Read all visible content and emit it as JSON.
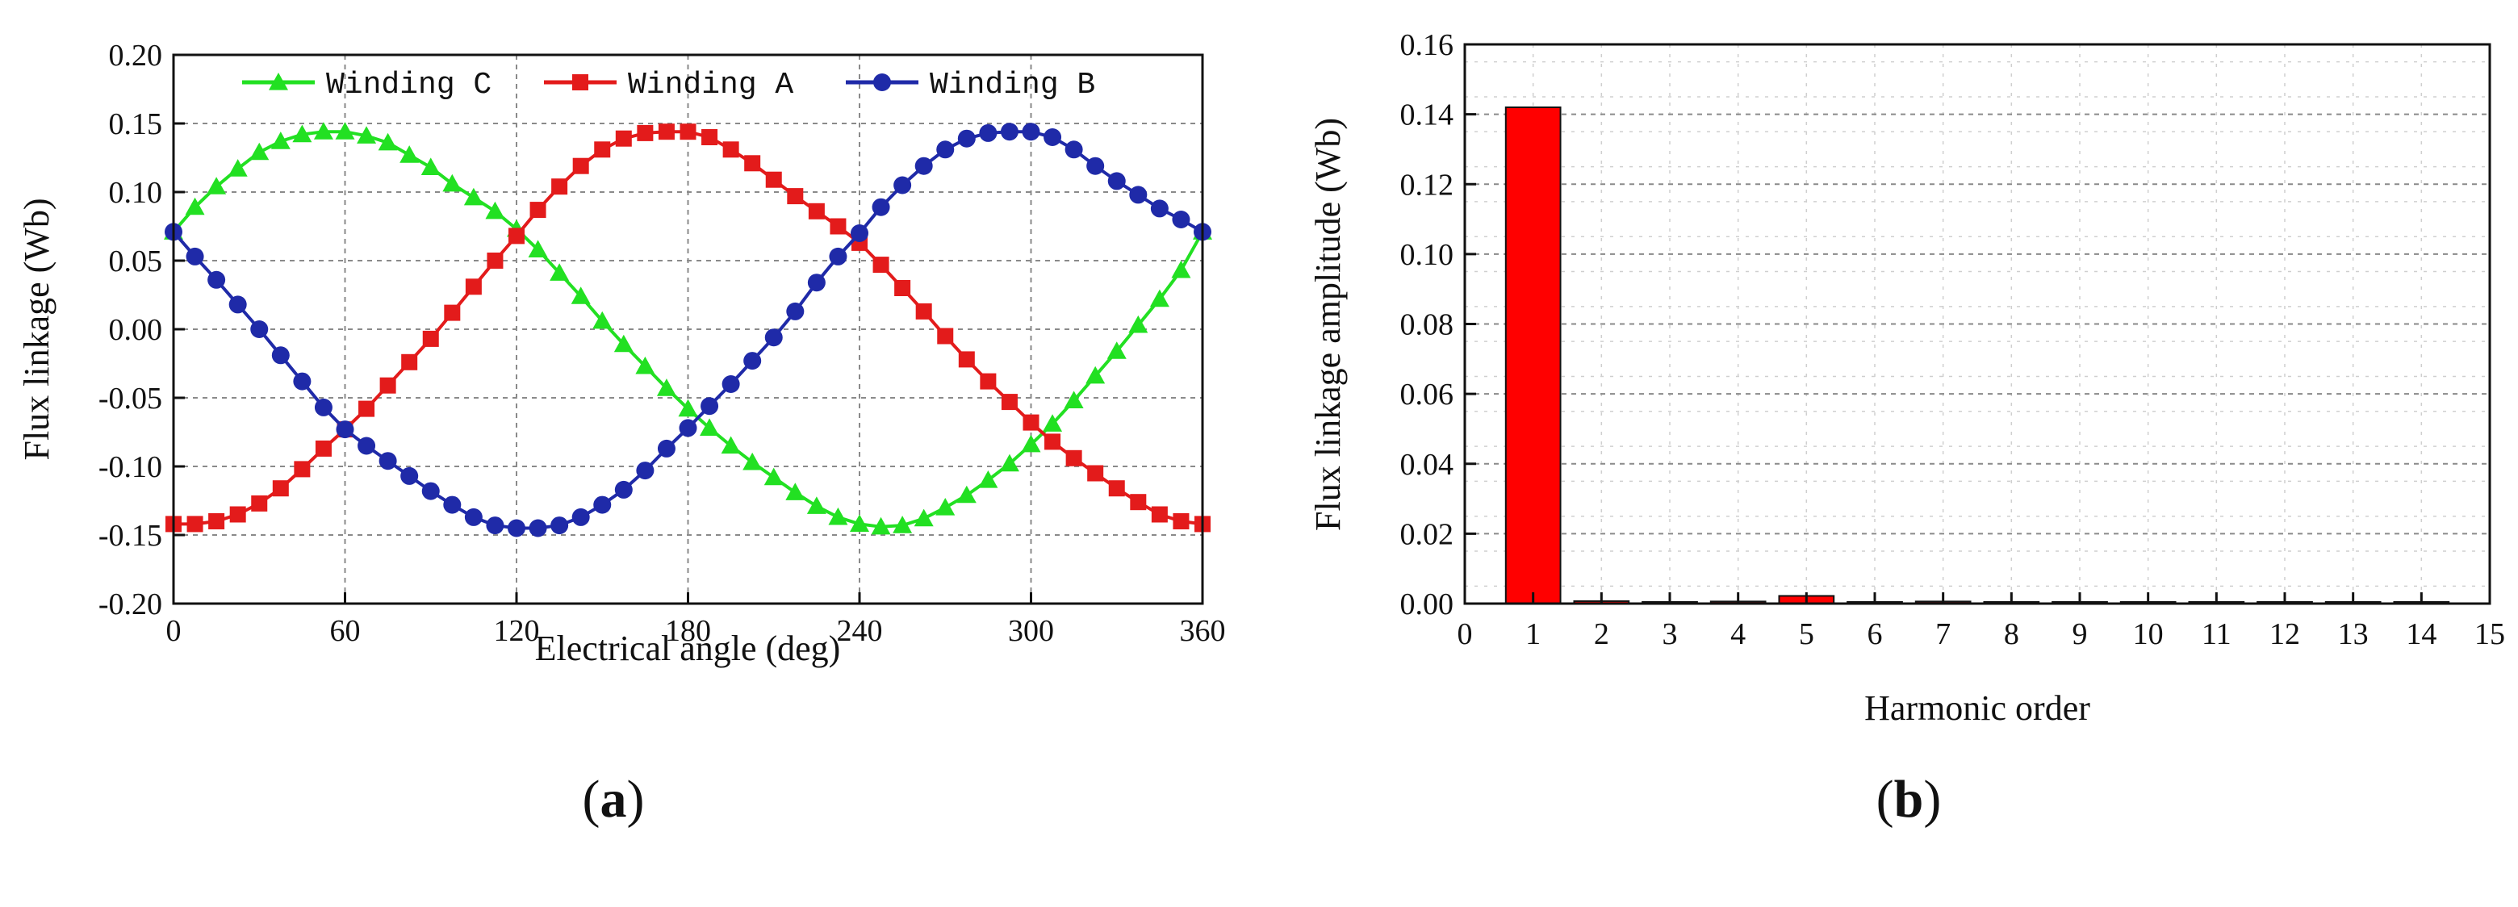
{
  "chart_data": [
    {
      "id": "a",
      "type": "line",
      "panel_label": "a",
      "xlabel": "Electrical angle (deg)",
      "ylabel": "Flux linkage (Wb)",
      "xlim": [
        0,
        360
      ],
      "ylim": [
        -0.2,
        0.2
      ],
      "xticks": [
        0,
        60,
        120,
        180,
        240,
        300,
        360
      ],
      "yticks": [
        -0.2,
        -0.15,
        -0.1,
        -0.05,
        0.0,
        0.05,
        0.1,
        0.15,
        0.2
      ],
      "ytick_labels": [
        "-0.20",
        "-0.15",
        "-0.10",
        "-0.05",
        "0.00",
        "0.05",
        "0.10",
        "0.15",
        "0.20"
      ],
      "xtick_labels": [
        "0",
        "60",
        "120",
        "180",
        "240",
        "300",
        "360"
      ],
      "grid": true,
      "legend_position": "top",
      "x": [
        0,
        7.5,
        15,
        22.5,
        30,
        37.5,
        45,
        52.5,
        60,
        67.5,
        75,
        82.5,
        90,
        97.5,
        105,
        112.5,
        120,
        127.5,
        135,
        142.5,
        150,
        157.5,
        165,
        172.5,
        180,
        187.5,
        195,
        202.5,
        210,
        217.5,
        225,
        232.5,
        240,
        247.5,
        255,
        262.5,
        270,
        277.5,
        285,
        292.5,
        300,
        307.5,
        315,
        322.5,
        330,
        337.5,
        345,
        352.5,
        360
      ],
      "series": [
        {
          "name": "Winding C",
          "color": "#22e022",
          "marker": "triangle",
          "values": [
            0.071,
            0.089,
            0.104,
            0.117,
            0.129,
            0.137,
            0.142,
            0.144,
            0.144,
            0.141,
            0.136,
            0.127,
            0.118,
            0.106,
            0.096,
            0.086,
            0.073,
            0.058,
            0.041,
            0.024,
            0.006,
            -0.011,
            -0.027,
            -0.043,
            -0.058,
            -0.072,
            -0.085,
            -0.097,
            -0.108,
            -0.119,
            -0.129,
            -0.137,
            -0.142,
            -0.144,
            -0.143,
            -0.138,
            -0.13,
            -0.121,
            -0.11,
            -0.098,
            -0.084,
            -0.069,
            -0.052,
            -0.034,
            -0.016,
            0.003,
            0.022,
            0.043,
            0.071
          ]
        },
        {
          "name": "Winding A",
          "color": "#e31b1b",
          "marker": "square",
          "values": [
            -0.142,
            -0.142,
            -0.14,
            -0.135,
            -0.127,
            -0.116,
            -0.102,
            -0.087,
            -0.073,
            -0.058,
            -0.041,
            -0.024,
            -0.007,
            0.012,
            0.031,
            0.05,
            0.068,
            0.087,
            0.104,
            0.119,
            0.131,
            0.139,
            0.143,
            0.144,
            0.144,
            0.14,
            0.131,
            0.121,
            0.109,
            0.097,
            0.086,
            0.075,
            0.063,
            0.047,
            0.03,
            0.013,
            -0.005,
            -0.022,
            -0.038,
            -0.053,
            -0.068,
            -0.082,
            -0.094,
            -0.105,
            -0.116,
            -0.126,
            -0.135,
            -0.14,
            -0.142
          ]
        },
        {
          "name": "Winding B",
          "color": "#1f2aa8",
          "marker": "circle",
          "values": [
            0.071,
            0.053,
            0.036,
            0.018,
            0.0,
            -0.019,
            -0.038,
            -0.057,
            -0.073,
            -0.085,
            -0.096,
            -0.107,
            -0.118,
            -0.128,
            -0.137,
            -0.143,
            -0.145,
            -0.145,
            -0.143,
            -0.137,
            -0.128,
            -0.117,
            -0.103,
            -0.087,
            -0.072,
            -0.056,
            -0.04,
            -0.023,
            -0.006,
            0.013,
            0.034,
            0.053,
            0.07,
            0.089,
            0.105,
            0.119,
            0.131,
            0.139,
            0.143,
            0.144,
            0.144,
            0.14,
            0.131,
            0.119,
            0.108,
            0.098,
            0.088,
            0.08,
            0.071
          ]
        }
      ]
    },
    {
      "id": "b",
      "type": "bar",
      "panel_label": "b",
      "xlabel": "Harmonic order",
      "ylabel": "Flux linkage amplitude (Wb)",
      "xlim": [
        0,
        15
      ],
      "ylim": [
        0,
        0.16
      ],
      "xticks": [
        0,
        1,
        2,
        3,
        4,
        5,
        6,
        7,
        8,
        9,
        10,
        11,
        12,
        13,
        14,
        15
      ],
      "xtick_labels": [
        "0",
        "1",
        "2",
        "3",
        "4",
        "5",
        "6",
        "7",
        "8",
        "9",
        "10",
        "11",
        "12",
        "13",
        "14",
        "15"
      ],
      "yticks": [
        0.0,
        0.02,
        0.04,
        0.06,
        0.08,
        0.1,
        0.12,
        0.14,
        0.16
      ],
      "ytick_labels": [
        "0.00",
        "0.02",
        "0.04",
        "0.06",
        "0.08",
        "0.10",
        "0.12",
        "0.14",
        "0.16"
      ],
      "grid": true,
      "bar_color": "#ff0000",
      "categories": [
        1,
        2,
        3,
        4,
        5,
        6,
        7,
        8,
        9,
        10,
        11,
        12,
        13,
        14
      ],
      "values": [
        0.142,
        0.0007,
        0.0002,
        0.0006,
        0.0022,
        0.0002,
        0.0006,
        0.0002,
        0.0001,
        0.0001,
        0.0001,
        0.0001,
        0.0001,
        0.0001
      ]
    }
  ]
}
